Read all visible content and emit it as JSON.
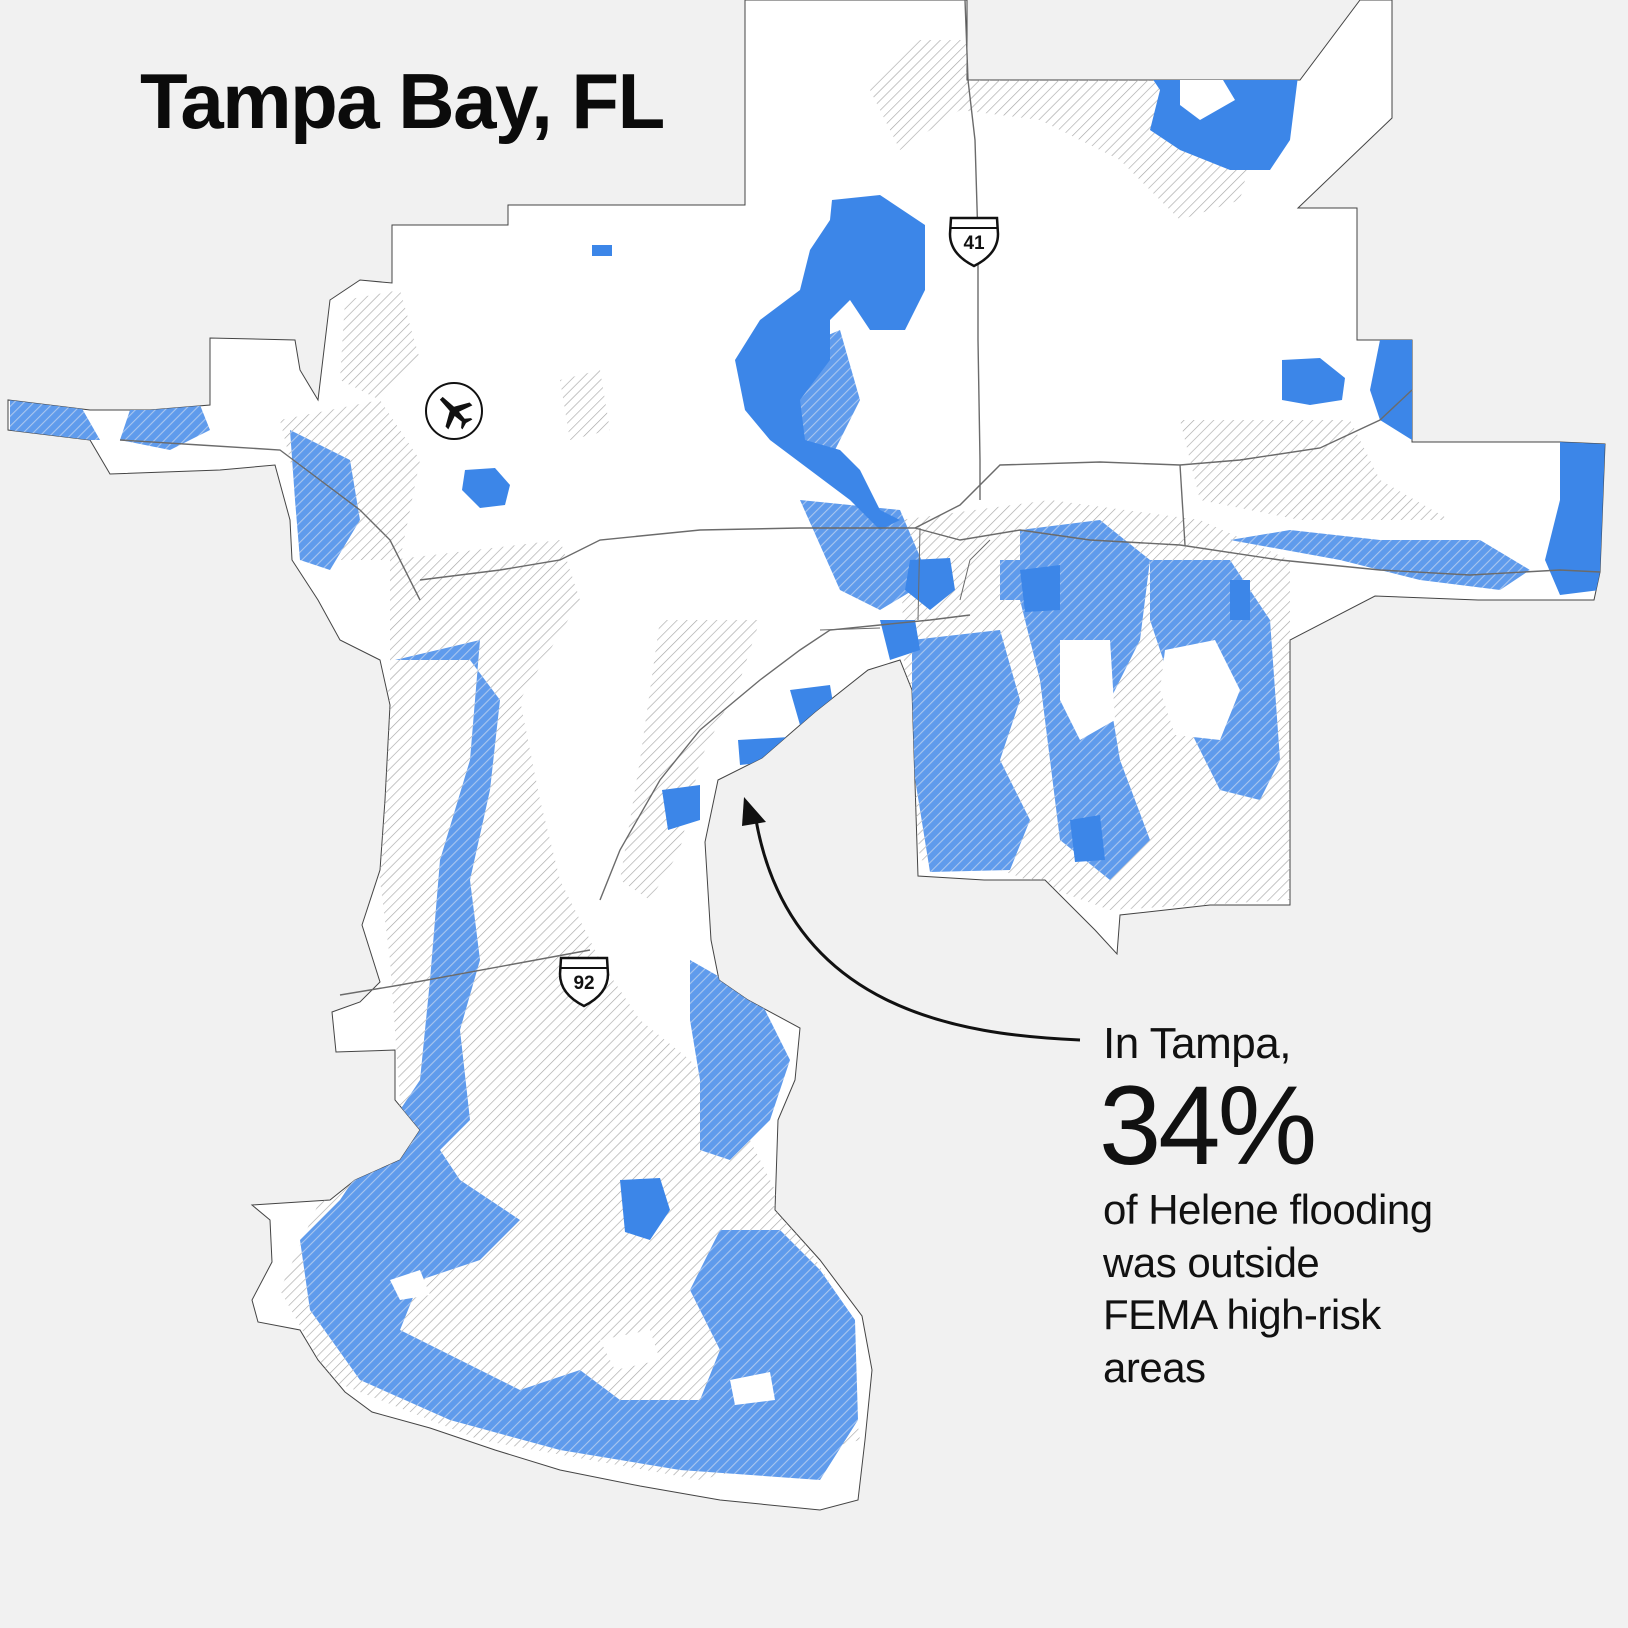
{
  "title": "Tampa Bay, FL",
  "callout": {
    "intro": "In Tampa,",
    "percent": "34%",
    "rest_lines": [
      "of Helene flooding",
      "was outside",
      "FEMA high-risk",
      "areas"
    ]
  },
  "highways": {
    "i41": "41",
    "i92": "92"
  },
  "icons": {
    "airport": "airplane-icon"
  },
  "colors": {
    "background": "#f1f1f1",
    "land": "#ffffff",
    "flood_outside_fema": "#3c86e8",
    "fema_high_risk_hatch": "#a9a9a9",
    "flood_inside_fema": "#9cbef0"
  }
}
